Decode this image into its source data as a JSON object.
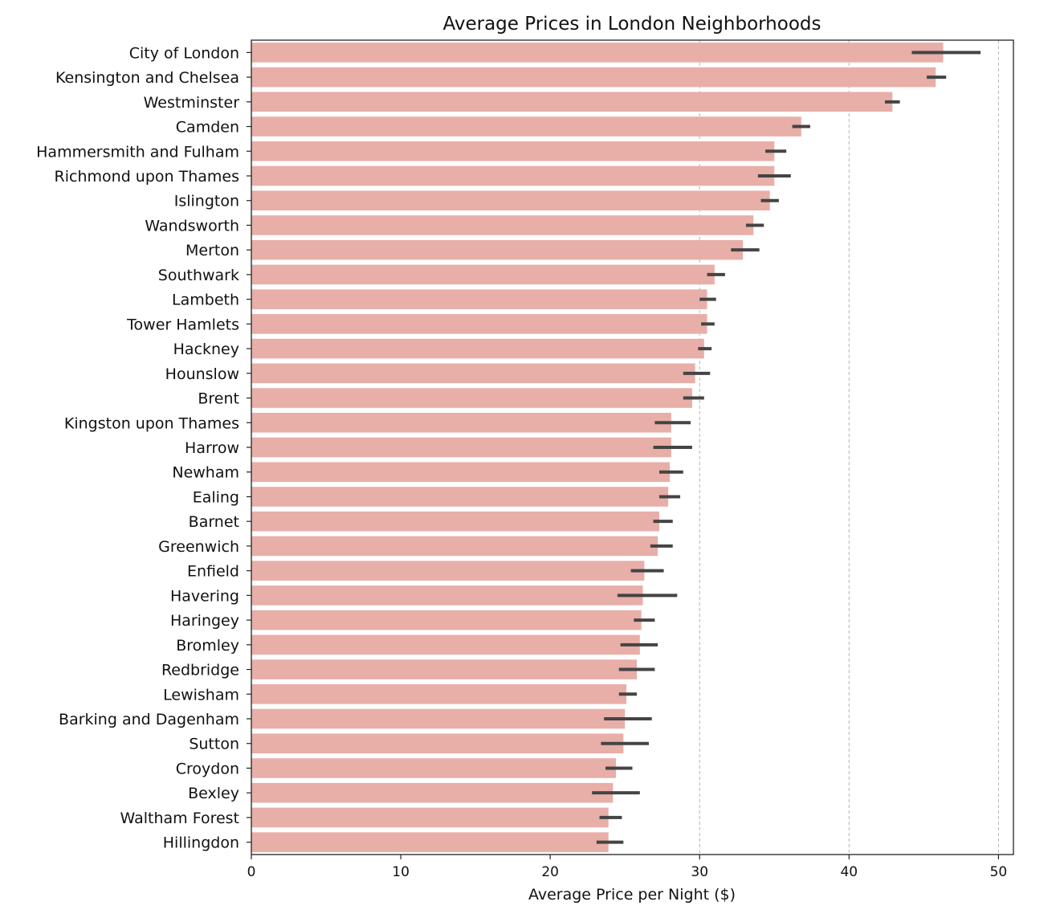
{
  "chart_data": {
    "type": "bar",
    "orientation": "horizontal",
    "title": "Average Prices in London Neighborhoods",
    "xlabel": "Average Price per Night ($)",
    "ylabel": "",
    "xlim": [
      0,
      51
    ],
    "xticks": [
      0,
      10,
      20,
      30,
      40,
      50
    ],
    "xtick_labels": [
      "0",
      "10",
      "20",
      "30",
      "40",
      "50"
    ],
    "grid": "vertical dashed at 30, 40, 50",
    "bar_color": "#e8aea8",
    "errorbar_color": "#444444",
    "categories": [
      "City of London",
      "Kensington and Chelsea",
      "Westminster",
      "Camden",
      "Hammersmith and Fulham",
      "Richmond upon Thames",
      "Islington",
      "Wandsworth",
      "Merton",
      "Southwark",
      "Lambeth",
      "Tower Hamlets",
      "Hackney",
      "Hounslow",
      "Brent",
      "Kingston upon Thames",
      "Harrow",
      "Newham",
      "Ealing",
      "Barnet",
      "Greenwich",
      "Enfield",
      "Havering",
      "Haringey",
      "Bromley",
      "Redbridge",
      "Lewisham",
      "Barking and Dagenham",
      "Sutton",
      "Croydon",
      "Bexley",
      "Waltham Forest",
      "Hillingdon"
    ],
    "values": [
      46.3,
      45.8,
      42.9,
      36.8,
      35.0,
      35.0,
      34.7,
      33.6,
      32.9,
      31.0,
      30.5,
      30.5,
      30.3,
      29.7,
      29.5,
      28.1,
      28.1,
      28.0,
      27.9,
      27.3,
      27.2,
      26.3,
      26.2,
      26.1,
      26.0,
      25.8,
      25.1,
      25.0,
      24.9,
      24.4,
      24.2,
      23.9,
      23.9
    ],
    "error_low": [
      44.2,
      45.2,
      42.4,
      36.2,
      34.4,
      33.9,
      34.1,
      33.1,
      32.1,
      30.5,
      30.0,
      30.1,
      29.9,
      28.9,
      28.9,
      27.0,
      26.9,
      27.3,
      27.3,
      26.9,
      26.7,
      25.4,
      24.5,
      25.6,
      24.7,
      24.6,
      24.6,
      23.6,
      23.4,
      23.7,
      22.8,
      23.3,
      23.1
    ],
    "error_high": [
      48.8,
      46.5,
      43.4,
      37.4,
      35.8,
      36.1,
      35.3,
      34.3,
      34.0,
      31.7,
      31.1,
      31.0,
      30.8,
      30.7,
      30.3,
      29.4,
      29.5,
      28.9,
      28.7,
      28.2,
      28.2,
      27.6,
      28.5,
      27.0,
      27.2,
      27.0,
      25.8,
      26.8,
      26.6,
      25.5,
      26.0,
      24.8,
      24.9
    ]
  }
}
